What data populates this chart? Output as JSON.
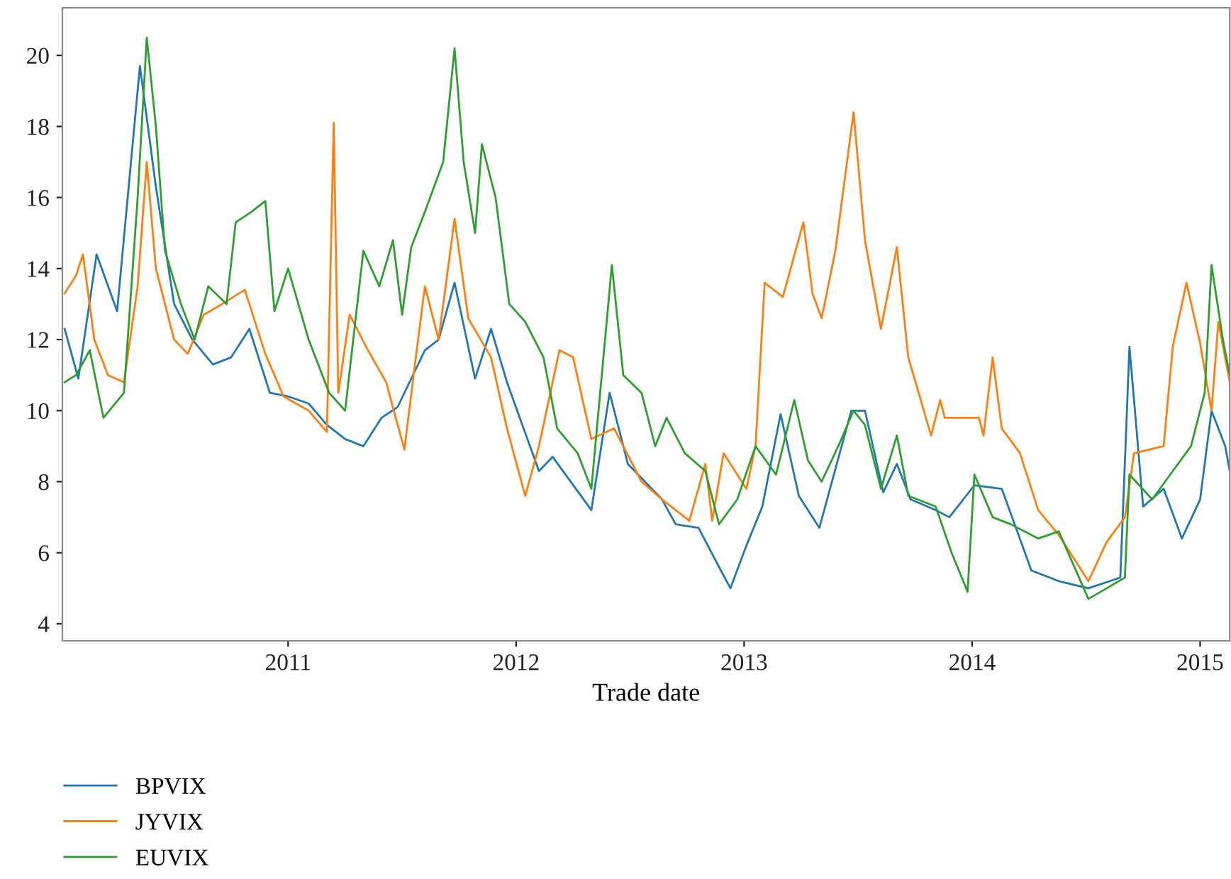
{
  "chart_data": {
    "type": "line",
    "xlabel": "Trade date",
    "xlim": [
      2010.01,
      2015.13
    ],
    "xticks": [
      2011,
      2012,
      2013,
      2014,
      2015
    ],
    "ylim": [
      3.52,
      21.34
    ],
    "yticks": [
      4,
      6,
      8,
      10,
      12,
      14,
      16,
      18,
      20
    ],
    "grid": false,
    "legend": "bottom left",
    "marker": "none",
    "line_style": "solid",
    "series": [
      {
        "name": "BPVIX",
        "color": "#1f77b4",
        "x": [
          2010.02,
          2010.08,
          2010.16,
          2010.25,
          2010.35,
          2010.42,
          2010.5,
          2010.58,
          2010.67,
          2010.75,
          2010.83,
          2010.92,
          2011.0,
          2011.09,
          2011.17,
          2011.25,
          2011.33,
          2011.41,
          2011.48,
          2011.6,
          2011.66,
          2011.73,
          2011.82,
          2011.89,
          2011.96,
          2012.1,
          2012.16,
          2012.33,
          2012.41,
          2012.49,
          2012.64,
          2012.7,
          2012.8,
          2012.89,
          2012.94,
          2013.01,
          2013.08,
          2013.16,
          2013.24,
          2013.33,
          2013.47,
          2013.53,
          2013.61,
          2013.67,
          2013.73,
          2013.84,
          2013.9,
          2014.01,
          2014.13,
          2014.26,
          2014.38,
          2014.51,
          2014.65,
          2014.69,
          2014.75,
          2014.84,
          2014.92,
          2015.0,
          2015.05,
          2015.11,
          2015.13
        ],
        "values": [
          12.3,
          10.9,
          14.4,
          12.8,
          19.7,
          16.3,
          13.0,
          12.0,
          11.3,
          11.5,
          12.3,
          10.5,
          10.4,
          10.2,
          9.6,
          9.2,
          9.0,
          9.8,
          10.1,
          11.7,
          12.0,
          13.6,
          10.9,
          12.3,
          10.8,
          8.3,
          8.7,
          7.2,
          10.5,
          8.5,
          7.5,
          6.8,
          6.7,
          5.6,
          5.0,
          6.2,
          7.3,
          9.9,
          7.6,
          6.7,
          10.0,
          10.0,
          7.7,
          8.5,
          7.5,
          7.2,
          7.0,
          7.9,
          7.8,
          5.5,
          5.2,
          5.0,
          5.3,
          11.8,
          7.3,
          7.8,
          6.4,
          7.5,
          10.0,
          9.0,
          8.3
        ]
      },
      {
        "name": "JYVIX",
        "color": "#ff7f0e",
        "x": [
          2010.02,
          2010.07,
          2010.1,
          2010.15,
          2010.21,
          2010.28,
          2010.34,
          2010.38,
          2010.42,
          2010.5,
          2010.56,
          2010.63,
          2010.71,
          2010.81,
          2010.9,
          2010.98,
          2011.09,
          2011.17,
          2011.2,
          2011.22,
          2011.27,
          2011.35,
          2011.43,
          2011.51,
          2011.56,
          2011.6,
          2011.66,
          2011.73,
          2011.79,
          2011.89,
          2011.96,
          2012.04,
          2012.1,
          2012.19,
          2012.25,
          2012.33,
          2012.43,
          2012.55,
          2012.64,
          2012.76,
          2012.83,
          2012.86,
          2012.91,
          2013.01,
          2013.05,
          2013.09,
          2013.17,
          2013.26,
          2013.3,
          2013.34,
          2013.4,
          2013.48,
          2013.53,
          2013.6,
          2013.67,
          2013.72,
          2013.82,
          2013.86,
          2013.88,
          2014.03,
          2014.05,
          2014.09,
          2014.13,
          2014.21,
          2014.29,
          2014.38,
          2014.51,
          2014.59,
          2014.67,
          2014.71,
          2014.84,
          2014.88,
          2014.94,
          2015.0,
          2015.05,
          2015.08,
          2015.13
        ],
        "values": [
          13.3,
          13.8,
          14.4,
          12.0,
          11.0,
          10.8,
          13.5,
          17.0,
          14.0,
          12.0,
          11.6,
          12.7,
          13.0,
          13.4,
          11.6,
          10.4,
          10.0,
          9.4,
          18.1,
          10.5,
          12.7,
          11.7,
          10.8,
          8.9,
          11.5,
          13.5,
          12.0,
          15.4,
          12.6,
          11.5,
          9.5,
          7.6,
          9.0,
          11.7,
          11.5,
          9.2,
          9.5,
          8.0,
          7.5,
          6.9,
          8.5,
          6.9,
          8.8,
          7.8,
          9.0,
          13.6,
          13.2,
          15.3,
          13.3,
          12.6,
          14.5,
          18.4,
          14.8,
          12.3,
          14.6,
          11.5,
          9.3,
          10.3,
          9.8,
          9.8,
          9.3,
          11.5,
          9.5,
          8.8,
          7.2,
          6.5,
          5.2,
          6.3,
          7.0,
          8.8,
          9.0,
          11.8,
          13.6,
          11.9,
          10.0,
          12.5,
          10.8
        ]
      },
      {
        "name": "EUVIX",
        "color": "#2ca02c",
        "x": [
          2010.02,
          2010.07,
          2010.13,
          2010.19,
          2010.28,
          2010.34,
          2010.38,
          2010.42,
          2010.46,
          2010.53,
          2010.59,
          2010.65,
          2010.73,
          2010.77,
          2010.84,
          2010.9,
          2010.94,
          2011.0,
          2011.09,
          2011.18,
          2011.25,
          2011.33,
          2011.4,
          2011.46,
          2011.5,
          2011.54,
          2011.6,
          2011.68,
          2011.73,
          2011.77,
          2011.82,
          2011.85,
          2011.91,
          2011.97,
          2012.04,
          2012.12,
          2012.18,
          2012.27,
          2012.33,
          2012.39,
          2012.42,
          2012.47,
          2012.55,
          2012.61,
          2012.66,
          2012.74,
          2012.83,
          2012.89,
          2012.97,
          2013.05,
          2013.14,
          2013.22,
          2013.28,
          2013.34,
          2013.42,
          2013.48,
          2013.53,
          2013.6,
          2013.67,
          2013.72,
          2013.84,
          2013.91,
          2013.98,
          2014.01,
          2014.09,
          2014.17,
          2014.29,
          2014.38,
          2014.51,
          2014.59,
          2014.67,
          2014.69,
          2014.79,
          2014.88,
          2014.96,
          2015.02,
          2015.05,
          2015.1,
          2015.13
        ],
        "values": [
          10.8,
          11.0,
          11.7,
          9.8,
          10.5,
          16.0,
          20.5,
          18.0,
          14.5,
          13.0,
          12.0,
          13.5,
          13.0,
          15.3,
          15.6,
          15.9,
          12.8,
          14.0,
          12.0,
          10.5,
          10.0,
          14.5,
          13.5,
          14.8,
          12.7,
          14.6,
          15.6,
          17.0,
          20.2,
          17.0,
          15.0,
          17.5,
          16.0,
          13.0,
          12.5,
          11.5,
          9.5,
          8.8,
          7.8,
          12.0,
          14.1,
          11.0,
          10.5,
          9.0,
          9.8,
          8.8,
          8.3,
          6.8,
          7.5,
          9.0,
          8.2,
          10.3,
          8.6,
          8.0,
          9.1,
          10.0,
          9.6,
          7.8,
          9.3,
          7.6,
          7.3,
          6.0,
          4.9,
          8.2,
          7.0,
          6.8,
          6.4,
          6.6,
          4.7,
          5.0,
          5.3,
          8.2,
          7.5,
          8.3,
          9.0,
          10.5,
          14.1,
          12.0,
          11.0
        ]
      }
    ]
  }
}
